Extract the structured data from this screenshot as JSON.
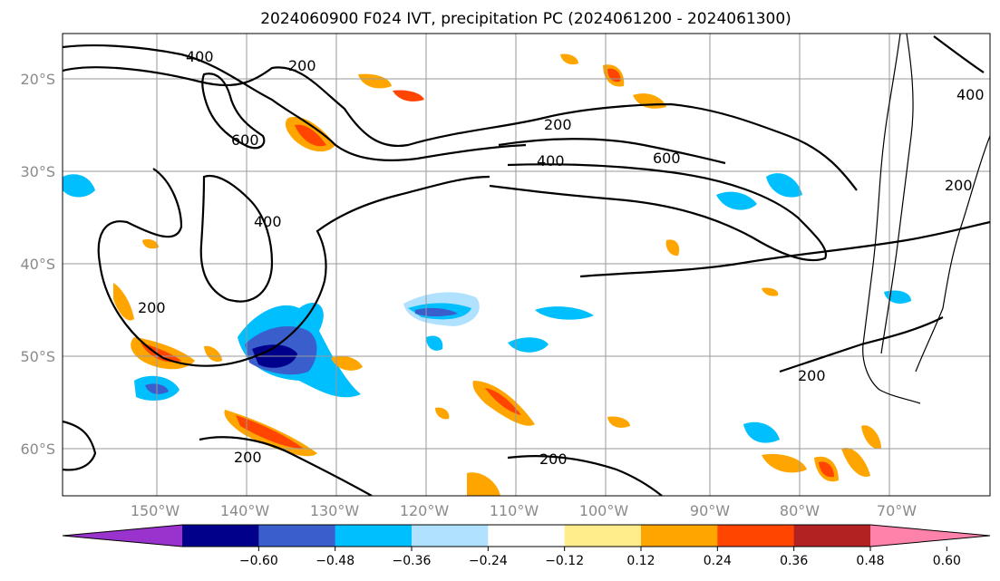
{
  "title": "2024060900 F024 IVT, precipitation PC (2024061200 - 2024061300)",
  "lat_labels": [
    "20°S",
    "30°S",
    "40°S",
    "50°S",
    "60°S"
  ],
  "lon_labels": [
    "150°W",
    "140°W",
    "130°W",
    "120°W",
    "110°W",
    "100°W",
    "90°W",
    "80°W",
    "70°W"
  ],
  "contour_labels": [
    "400",
    "200",
    "600",
    "200",
    "400",
    "600",
    "400",
    "200",
    "200",
    "200",
    "200",
    "400",
    "200"
  ],
  "colorbar": {
    "ticks": [
      "−0.60",
      "−0.48",
      "−0.36",
      "−0.24",
      "−0.12",
      "0.12",
      "0.24",
      "0.36",
      "0.48",
      "0.60"
    ],
    "colors": [
      "#9a32cd",
      "#00008b",
      "#3a5fcd",
      "#00bfff",
      "#b0e2ff",
      "#ffffff",
      "#ffec8b",
      "#ffa500",
      "#ff4500",
      "#b22222",
      "#ff82ab"
    ]
  },
  "colors": {
    "neg_strong": "#00008b",
    "neg_mid": "#3a5fcd",
    "neg": "#00bfff",
    "neg_weak": "#b0e2ff",
    "pos_weak": "#ffec8b",
    "pos": "#ffa500",
    "pos_mid": "#ff4500",
    "pos_strong": "#b22222"
  }
}
